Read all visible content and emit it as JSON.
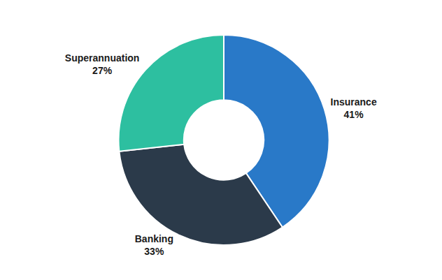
{
  "chart_data": {
    "type": "donut",
    "categories": [
      "Insurance",
      "Banking",
      "Superannuation"
    ],
    "values": [
      41,
      33,
      27
    ],
    "value_labels": [
      "41%",
      "33%",
      "27%"
    ],
    "colors": [
      "#2979c8",
      "#2b3a4a",
      "#2dbfa0"
    ],
    "data_labels": true
  }
}
